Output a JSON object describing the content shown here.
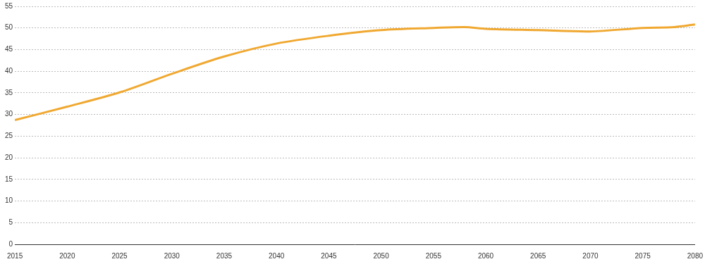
{
  "chart_data": {
    "type": "line",
    "x": [
      2015,
      2020,
      2025,
      2030,
      2035,
      2040,
      2045,
      2050,
      2055,
      2058,
      2060,
      2065,
      2070,
      2075,
      2078,
      2080
    ],
    "series": [
      {
        "color": "#f0a830",
        "values": [
          28.7,
          31.8,
          35.1,
          39.4,
          43.4,
          46.4,
          48.2,
          49.5,
          50.0,
          50.2,
          49.8,
          49.5,
          49.2,
          50.0,
          50.2,
          50.8
        ]
      }
    ],
    "xlim": [
      2015,
      2080
    ],
    "xticks": [
      2015,
      2020,
      2025,
      2030,
      2035,
      2040,
      2045,
      2050,
      2055,
      2060,
      2065,
      2070,
      2075,
      2080
    ],
    "ylim": [
      0,
      55
    ],
    "yticks": [
      0,
      5,
      10,
      15,
      20,
      25,
      30,
      35,
      40,
      45,
      50,
      55
    ],
    "grid": true
  }
}
